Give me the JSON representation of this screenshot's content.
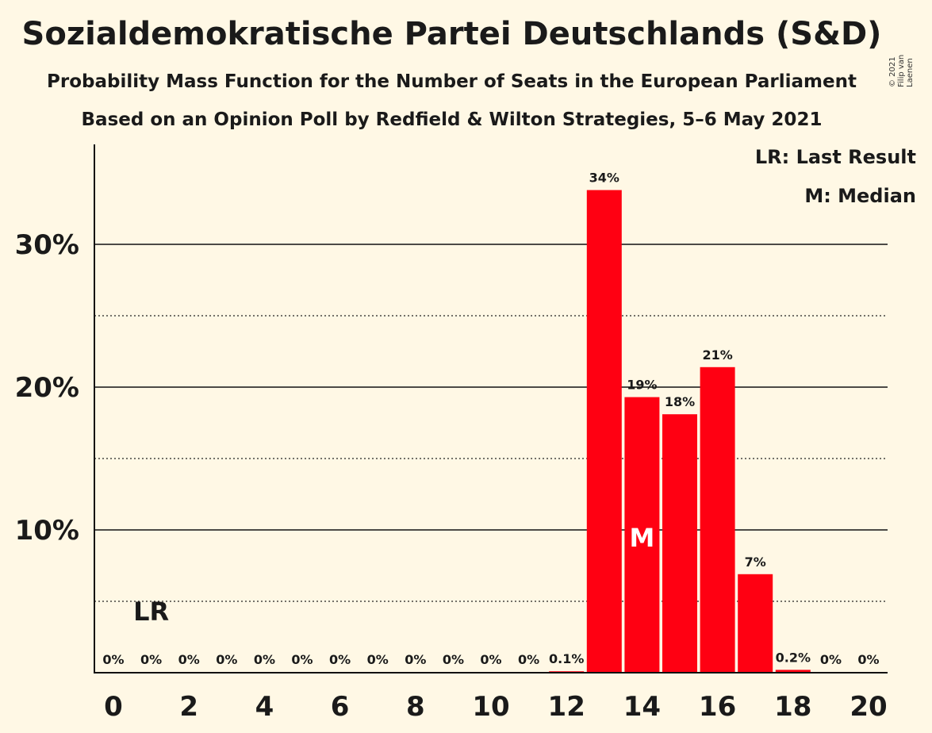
{
  "header": {
    "title": "Sozialdemokratische Partei Deutschlands (S&D)",
    "subtitle": "Probability Mass Function for the Number of Seats in the European Parliament",
    "subtitle2": "Based on an Opinion Poll by Redfield & Wilton Strategies, 5–6 May 2021",
    "copyright": "© 2021 Filip van Laenen"
  },
  "legend": {
    "last_result": "LR: Last Result",
    "median": "M: Median"
  },
  "colors": {
    "bar": "#ff0012",
    "background": "#fff8e5"
  },
  "chart_data": {
    "type": "bar",
    "x": [
      0,
      1,
      2,
      3,
      4,
      5,
      6,
      7,
      8,
      9,
      10,
      11,
      12,
      13,
      14,
      15,
      16,
      17,
      18,
      19,
      20
    ],
    "values": [
      0,
      0,
      0,
      0,
      0,
      0,
      0,
      0,
      0,
      0,
      0,
      0,
      0.1,
      33.8,
      19.3,
      18.1,
      21.4,
      6.9,
      0.2,
      0,
      0
    ],
    "value_labels": [
      "0%",
      "0%",
      "0%",
      "0%",
      "0%",
      "0%",
      "0%",
      "0%",
      "0%",
      "0%",
      "0%",
      "0%",
      "0.1%",
      "34%",
      "19%",
      "18%",
      "21%",
      "7%",
      "0.2%",
      "0%",
      "0%"
    ],
    "x_tick_labels": [
      "0",
      "2",
      "4",
      "6",
      "8",
      "10",
      "12",
      "14",
      "16",
      "18",
      "20"
    ],
    "y_tick_labels": [
      "10%",
      "20%",
      "30%"
    ],
    "ylim": [
      0,
      37
    ],
    "last_result_seat": 1,
    "last_result_label": "LR",
    "median_seat": 14,
    "median_label": "M",
    "grid": "solid lines at 10/20/30%, dotted lines at 5/15/25%"
  }
}
